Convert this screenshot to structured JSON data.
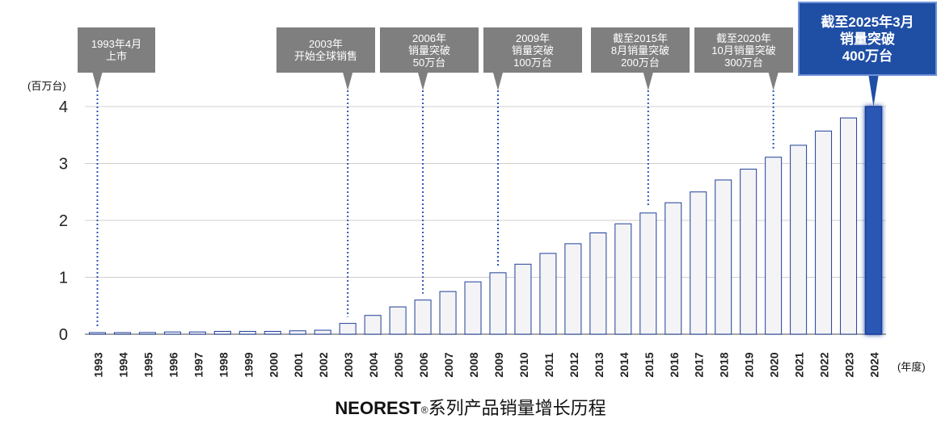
{
  "chart_data": {
    "type": "bar",
    "title_brand": "NEOREST",
    "title_mark": "®",
    "title_rest": "系列产品销量增长历程",
    "ylabel": "(百万台)",
    "xlabel": "(年度)",
    "ylim": [
      0,
      4
    ],
    "yticks": [
      0,
      1,
      2,
      3,
      4
    ],
    "grid": true,
    "categories": [
      "1993",
      "1994",
      "1995",
      "1996",
      "1997",
      "1998",
      "1999",
      "2000",
      "2001",
      "2002",
      "2003",
      "2004",
      "2005",
      "2006",
      "2007",
      "2008",
      "2009",
      "2010",
      "2011",
      "2012",
      "2013",
      "2014",
      "2015",
      "2016",
      "2017",
      "2018",
      "2019",
      "2020",
      "2021",
      "2022",
      "2023",
      "2024"
    ],
    "values": [
      0.01,
      0.02,
      0.03,
      0.04,
      0.04,
      0.05,
      0.05,
      0.05,
      0.06,
      0.07,
      0.19,
      0.33,
      0.48,
      0.6,
      0.75,
      0.92,
      1.08,
      1.23,
      1.42,
      1.59,
      1.78,
      1.94,
      2.13,
      2.31,
      2.5,
      2.71,
      2.9,
      3.11,
      3.32,
      3.57,
      3.8,
      4.0
    ],
    "highlight_index": 31,
    "colors": {
      "bar": "#f4f4f6",
      "bar_edge": "#1f3f99",
      "highlight": "#2a56b4",
      "callout": "#7f7f7f",
      "callout_highlight": "#1f4ea5",
      "grid": "#cfcfcf",
      "leader": "#2b55b8"
    }
  },
  "annotations": [
    {
      "category": "1993",
      "lines": [
        "1993年4月",
        "上市"
      ]
    },
    {
      "category": "2003",
      "lines": [
        "2003年",
        "开始全球销售"
      ]
    },
    {
      "category": "2006",
      "lines": [
        "2006年",
        "销量突破",
        "50万台"
      ]
    },
    {
      "category": "2009",
      "lines": [
        "2009年",
        "销量突破",
        "100万台"
      ]
    },
    {
      "category": "2015",
      "lines": [
        "截至2015年",
        "8月销量突破",
        "200万台"
      ]
    },
    {
      "category": "2020",
      "lines": [
        "截至2020年",
        "10月销量突破",
        "300万台"
      ]
    },
    {
      "category": "2024",
      "lines": [
        "截至2025年3月",
        "销量突破",
        "400万台"
      ],
      "highlight": true
    }
  ]
}
